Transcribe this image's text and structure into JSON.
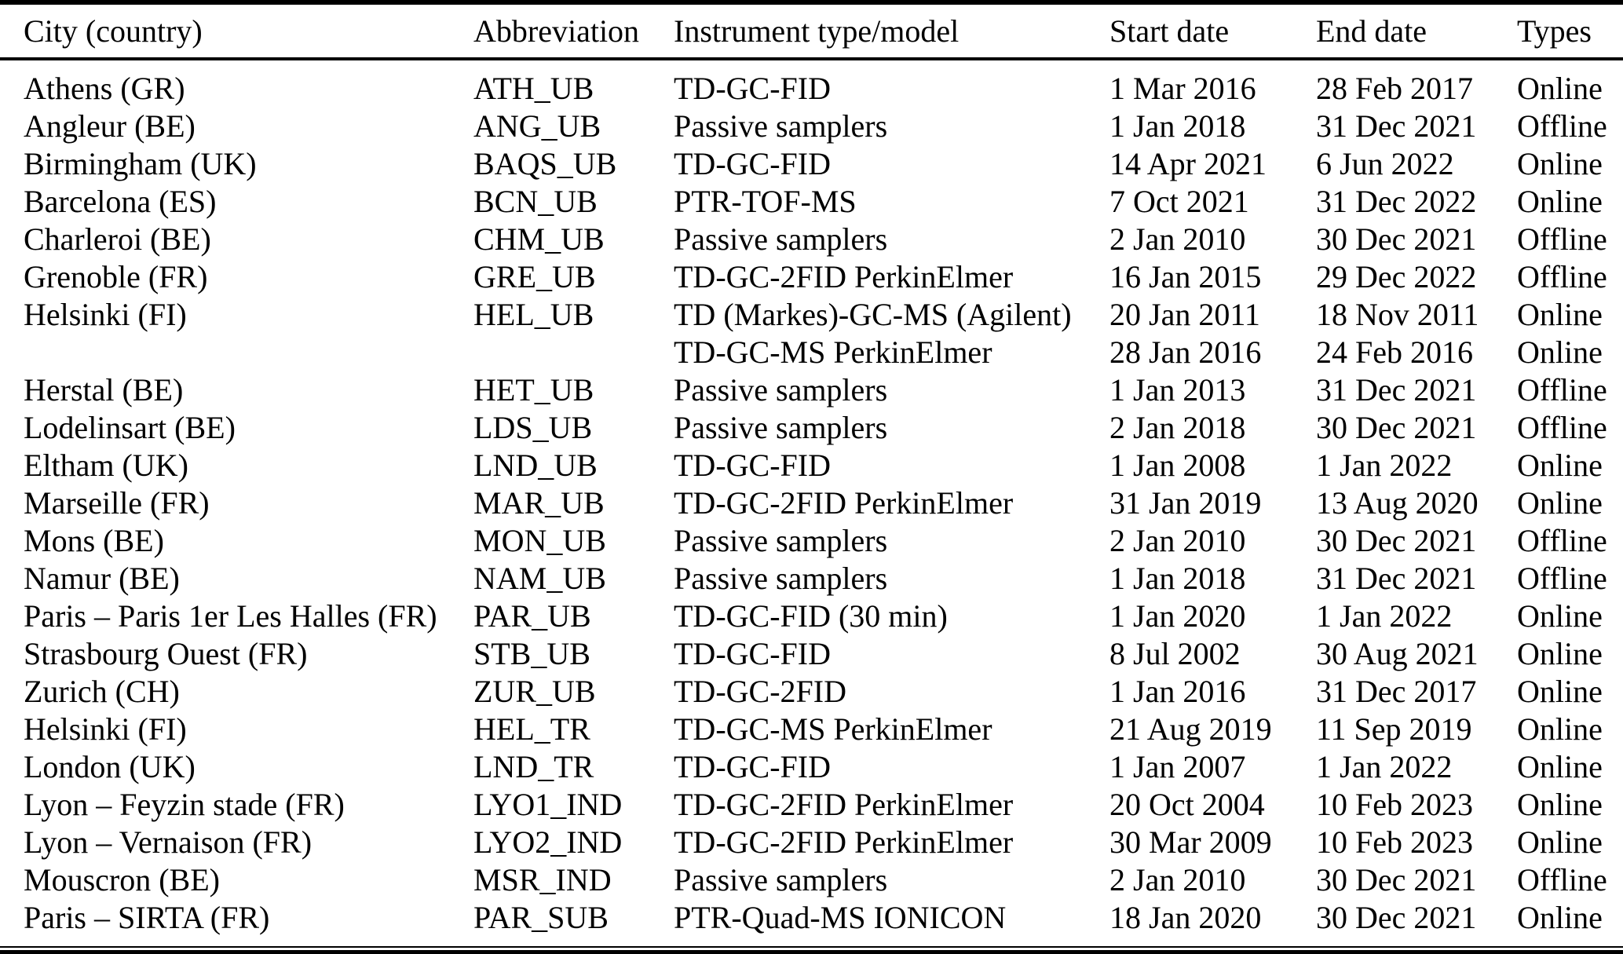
{
  "table": {
    "columns": [
      "City (country)",
      "Abbreviation",
      "Instrument type/model",
      "Start date",
      "End date",
      "Types"
    ],
    "rows": [
      {
        "city": "Athens (GR)",
        "abbr": "ATH_UB",
        "instrument": "TD-GC-FID",
        "start": "1 Mar 2016",
        "end": "28 Feb 2017",
        "type": "Online"
      },
      {
        "city": "Angleur (BE)",
        "abbr": "ANG_UB",
        "instrument": "Passive samplers",
        "start": "1 Jan 2018",
        "end": "31 Dec 2021",
        "type": "Offline"
      },
      {
        "city": "Birmingham (UK)",
        "abbr": "BAQS_UB",
        "instrument": "TD-GC-FID",
        "start": "14 Apr 2021",
        "end": "6 Jun 2022",
        "type": "Online"
      },
      {
        "city": "Barcelona (ES)",
        "abbr": "BCN_UB",
        "instrument": "PTR-TOF-MS",
        "start": "7 Oct 2021",
        "end": "31 Dec 2022",
        "type": "Online"
      },
      {
        "city": "Charleroi (BE)",
        "abbr": "CHM_UB",
        "instrument": "Passive samplers",
        "start": "2 Jan 2010",
        "end": "30 Dec 2021",
        "type": "Offline"
      },
      {
        "city": "Grenoble (FR)",
        "abbr": "GRE_UB",
        "instrument": "TD-GC-2FID PerkinElmer",
        "start": "16 Jan 2015",
        "end": "29 Dec 2022",
        "type": "Offline"
      },
      {
        "city": "Helsinki (FI)",
        "abbr": "HEL_UB",
        "instrument": "TD (Markes)-GC-MS (Agilent)",
        "start": "20 Jan 2011",
        "end": "18 Nov 2011",
        "type": "Online"
      },
      {
        "city": "",
        "abbr": "",
        "instrument": "TD-GC-MS PerkinElmer",
        "start": "28 Jan 2016",
        "end": "24 Feb 2016",
        "type": "Online"
      },
      {
        "city": "Herstal (BE)",
        "abbr": "HET_UB",
        "instrument": "Passive samplers",
        "start": "1 Jan 2013",
        "end": "31 Dec 2021",
        "type": "Offline"
      },
      {
        "city": "Lodelinsart (BE)",
        "abbr": "LDS_UB",
        "instrument": "Passive samplers",
        "start": "2 Jan 2018",
        "end": "30 Dec 2021",
        "type": "Offline"
      },
      {
        "city": "Eltham (UK)",
        "abbr": "LND_UB",
        "instrument": "TD-GC-FID",
        "start": "1 Jan 2008",
        "end": "1 Jan 2022",
        "type": "Online"
      },
      {
        "city": "Marseille (FR)",
        "abbr": "MAR_UB",
        "instrument": "TD-GC-2FID PerkinElmer",
        "start": "31 Jan 2019",
        "end": "13 Aug 2020",
        "type": "Online"
      },
      {
        "city": "Mons (BE)",
        "abbr": "MON_UB",
        "instrument": "Passive samplers",
        "start": "2 Jan 2010",
        "end": "30 Dec 2021",
        "type": "Offline"
      },
      {
        "city": "Namur (BE)",
        "abbr": "NAM_UB",
        "instrument": "Passive samplers",
        "start": "1 Jan 2018",
        "end": "31 Dec 2021",
        "type": "Offline"
      },
      {
        "city": "Paris – Paris 1er Les Halles (FR)",
        "abbr": "PAR_UB",
        "instrument": "TD-GC-FID (30 min)",
        "start": "1 Jan 2020",
        "end": "1 Jan 2022",
        "type": "Online"
      },
      {
        "city": "Strasbourg Ouest (FR)",
        "abbr": "STB_UB",
        "instrument": "TD-GC-FID",
        "start": "8 Jul 2002",
        "end": "30 Aug 2021",
        "type": "Online"
      },
      {
        "city": "Zurich (CH)",
        "abbr": "ZUR_UB",
        "instrument": "TD-GC-2FID",
        "start": "1 Jan 2016",
        "end": "31 Dec 2017",
        "type": "Online"
      },
      {
        "city": "Helsinki (FI)",
        "abbr": "HEL_TR",
        "instrument": "TD-GC-MS PerkinElmer",
        "start": "21 Aug 2019",
        "end": "11 Sep 2019",
        "type": "Online"
      },
      {
        "city": "London (UK)",
        "abbr": "LND_TR",
        "instrument": "TD-GC-FID",
        "start": "1 Jan 2007",
        "end": "1 Jan 2022",
        "type": "Online"
      },
      {
        "city": "Lyon – Feyzin stade (FR)",
        "abbr": "LYO1_IND",
        "instrument": "TD-GC-2FID PerkinElmer",
        "start": "20 Oct 2004",
        "end": "10 Feb 2023",
        "type": "Online"
      },
      {
        "city": "Lyon – Vernaison (FR)",
        "abbr": "LYO2_IND",
        "instrument": "TD-GC-2FID PerkinElmer",
        "start": "30 Mar 2009",
        "end": "10 Feb 2023",
        "type": "Online"
      },
      {
        "city": "Mouscron (BE)",
        "abbr": "MSR_IND",
        "instrument": "Passive samplers",
        "start": "2 Jan 2010",
        "end": "30 Dec 2021",
        "type": "Offline"
      },
      {
        "city": "Paris – SIRTA (FR)",
        "abbr": "PAR_SUB",
        "instrument": "PTR-Quad-MS IONICON",
        "start": "18 Jan 2020",
        "end": "30 Dec 2021",
        "type": "Online"
      }
    ]
  }
}
